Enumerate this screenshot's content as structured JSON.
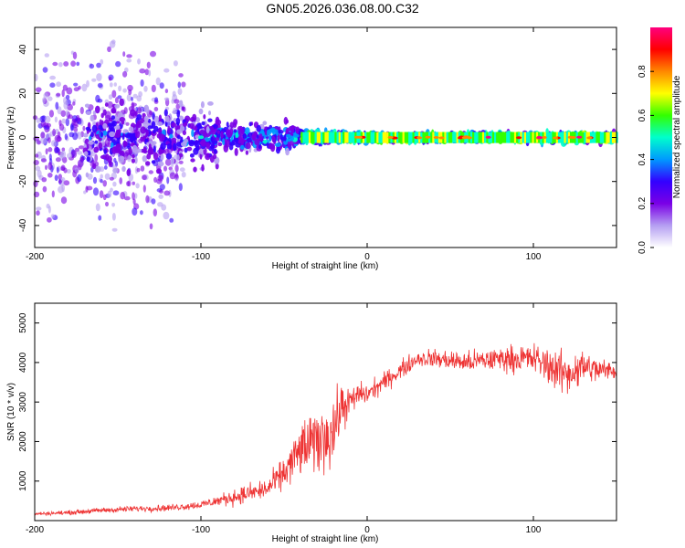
{
  "figure": {
    "title": "GN05.2026.036.08.00.C32"
  },
  "chart_data": [
    {
      "type": "heatmap",
      "xlabel": "Height of straight line (km)",
      "ylabel": "Frequency (Hz)",
      "xlim": [
        -200,
        150
      ],
      "ylim": [
        -50,
        50
      ],
      "xticks": [
        -200,
        -100,
        0,
        100
      ],
      "yticks": [
        -40,
        -20,
        0,
        20,
        40
      ],
      "grid": false,
      "colorbar": {
        "label": "Normalized spectral amplitude",
        "range": [
          0,
          1
        ],
        "ticks": [
          "0.0",
          "0.2",
          "0.4",
          "0.6",
          "0.8"
        ],
        "colors": [
          "#ffffff",
          "#b59ff2",
          "#7a00e6",
          "#3300ff",
          "#0099ff",
          "#00ffcc",
          "#33ff00",
          "#ffff00",
          "#ff8800",
          "#ff0000",
          "#ff007f"
        ]
      },
      "description_points": [
        {
          "x_range": [
            -200,
            -110
          ],
          "freq_spread": 50,
          "amplitude": 0.15
        },
        {
          "x_range": [
            -170,
            -90
          ],
          "freq_spread": 20,
          "amplitude": 0.3
        },
        {
          "x_range": [
            -100,
            -40
          ],
          "freq_spread": 8,
          "amplitude": 0.4
        },
        {
          "x_range": [
            -40,
            0
          ],
          "freq_spread": 4,
          "amplitude": 0.6
        },
        {
          "x_range": [
            0,
            150
          ],
          "freq_spread": 3,
          "amplitude": 0.7
        }
      ]
    },
    {
      "type": "line",
      "xlabel": "Height of straight line (km)",
      "ylabel": "SNR (10 * v/v)",
      "xlim": [
        -200,
        150
      ],
      "ylim": [
        0,
        5500
      ],
      "xticks": [
        -200,
        -100,
        0,
        100
      ],
      "yticks": [
        1000,
        2000,
        3000,
        4000,
        5000
      ],
      "grid": false,
      "series": [
        {
          "color": "#ee3333",
          "x": [
            -200,
            -180,
            -160,
            -140,
            -120,
            -100,
            -90,
            -80,
            -70,
            -60,
            -50,
            -40,
            -30,
            -20,
            -15,
            -10,
            -5,
            0,
            10,
            20,
            30,
            40,
            60,
            80,
            100,
            110,
            120,
            130,
            140,
            150
          ],
          "y": [
            170,
            200,
            260,
            300,
            320,
            400,
            500,
            600,
            700,
            800,
            1200,
            1800,
            2000,
            2300,
            2900,
            3000,
            3200,
            3200,
            3500,
            3800,
            4100,
            4100,
            4000,
            4100,
            4100,
            3900,
            3700,
            3900,
            3800,
            3800
          ],
          "noise": [
            60,
            80,
            100,
            110,
            120,
            150,
            200,
            300,
            350,
            400,
            600,
            1000,
            1200,
            1300,
            900,
            500,
            450,
            400,
            350,
            350,
            300,
            350,
            400,
            450,
            550,
            700,
            800,
            650,
            450,
            300
          ]
        }
      ]
    }
  ]
}
